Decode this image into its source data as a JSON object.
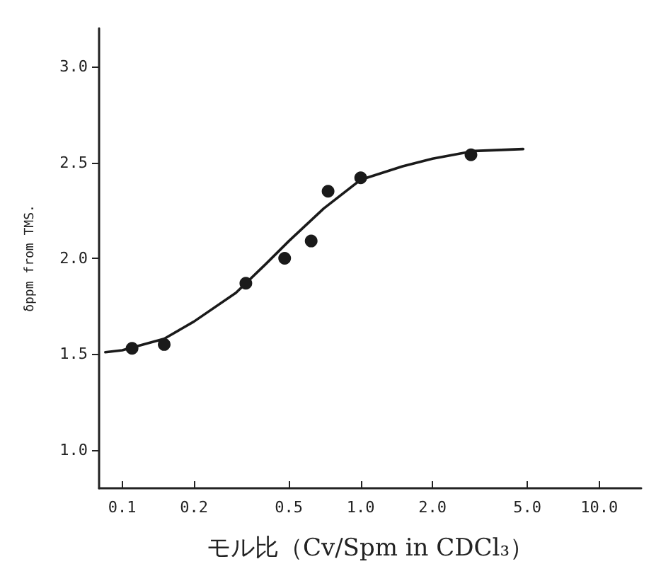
{
  "chart_data": {
    "type": "scatter",
    "xlabel": "モル比（Cv/Spm in CDCl₃）",
    "ylabel": "δppm from TMS.",
    "log": "x",
    "xlim": [
      0.08,
      15
    ],
    "xticks": [
      0.1,
      0.2,
      0.5,
      {
        "value": 1,
        "label": "1.0"
      },
      {
        "value": 2,
        "label": "2.0"
      },
      {
        "value": 5,
        "label": "5.0"
      },
      {
        "value": 10,
        "label": "10.0"
      }
    ],
    "ylim": [
      0.8,
      3.2
    ],
    "yticks": [
      {
        "value": 1,
        "label": "1.0"
      },
      1.5,
      {
        "value": 2,
        "label": "2.0"
      },
      2.5,
      {
        "value": 3,
        "label": "3.0"
      }
    ],
    "grid": false,
    "marker": "circle",
    "series": [
      {
        "color": "#1a1a1a",
        "x": [
          0.11,
          0.15,
          0.33,
          0.48,
          0.62,
          0.73,
          1.0,
          2.9
        ],
        "values": [
          1.53,
          1.55,
          1.87,
          2.0,
          2.09,
          2.35,
          2.42,
          2.54
        ]
      },
      {
        "type": "line",
        "color": "#1a1a1a",
        "line_style": "solid",
        "marker": "none",
        "x": [
          0.085,
          0.1,
          0.15,
          0.2,
          0.3,
          0.4,
          0.5,
          0.7,
          1.0,
          1.5,
          2.0,
          3.0,
          4.8
        ],
        "values": [
          1.51,
          1.52,
          1.58,
          1.67,
          1.82,
          1.97,
          2.09,
          2.26,
          2.41,
          2.48,
          2.52,
          2.56,
          2.57
        ]
      }
    ]
  }
}
